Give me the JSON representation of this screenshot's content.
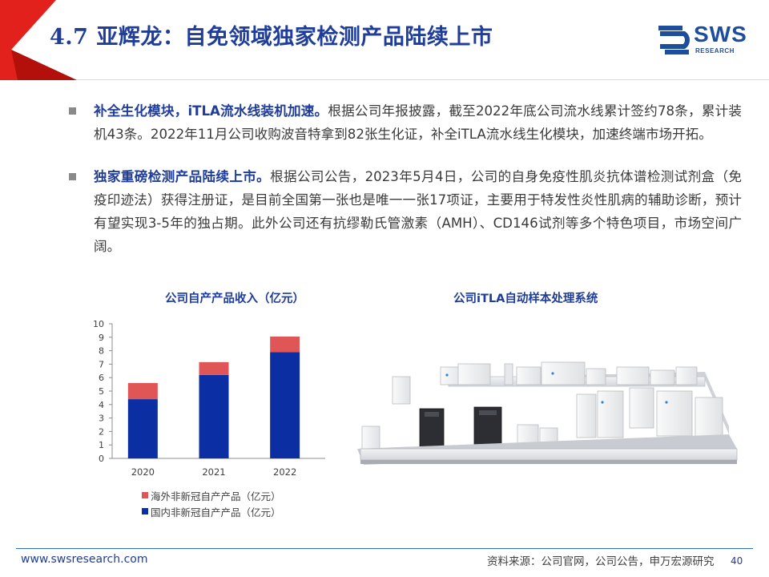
{
  "header": {
    "title": "4.7 亚辉龙：自免领域独家检测产品陆续上市",
    "accent_color": "#e2211c",
    "logo": {
      "name": "SWS",
      "subtitle": "RESEARCH",
      "color": "#1d4e9e"
    }
  },
  "bullets": [
    {
      "lead": "补全生化模块，iTLA流水线装机加速。",
      "text": "根据公司年报披露，截至2022年底公司流水线累计签约78条，累计装机43条。2022年11月公司收购波音特拿到82张生化证，补全iTLA流水线生化模块，加速终端市场开拓。"
    },
    {
      "lead": "独家重磅检测产品陆续上市。",
      "text": "根据公司公告，2023年5月4日，公司的自身免疫性肌炎抗体谱检测试剂盒（免疫印迹法）获得注册证，是目前全国第一张也是唯一一张17项证，主要用于特发性炎性肌病的辅助诊断，预计有望实现3-5年的独占期。此外公司还有抗缪勒氏管激素（AMH）、CD146试剂等多个特色项目，市场空间广阔。"
    }
  ],
  "chart_data": {
    "type": "bar",
    "stacked": true,
    "title": "公司自产产品收入（亿元）",
    "categories": [
      "2020",
      "2021",
      "2022"
    ],
    "series": [
      {
        "name": "国内非新冠自产产品（亿元）",
        "color": "#0b2fa3",
        "values": [
          4.4,
          6.2,
          7.9
        ]
      },
      {
        "name": "海外非新冠自产产品（亿元）",
        "color": "#e05555",
        "values": [
          1.2,
          0.95,
          1.15
        ]
      }
    ],
    "ylim": [
      0,
      10
    ],
    "yticks": [
      0,
      1,
      2,
      3,
      4,
      5,
      6,
      7,
      8,
      9,
      10
    ],
    "xlabel": "",
    "ylabel": "",
    "grid": false,
    "legend_position": "bottom"
  },
  "image_panel": {
    "title": "公司iTLA自动样本处理系统"
  },
  "footer": {
    "url": "www.swsresearch.com",
    "source": "资料来源：公司官网，公司公告，申万宏源研究",
    "page": "40"
  }
}
